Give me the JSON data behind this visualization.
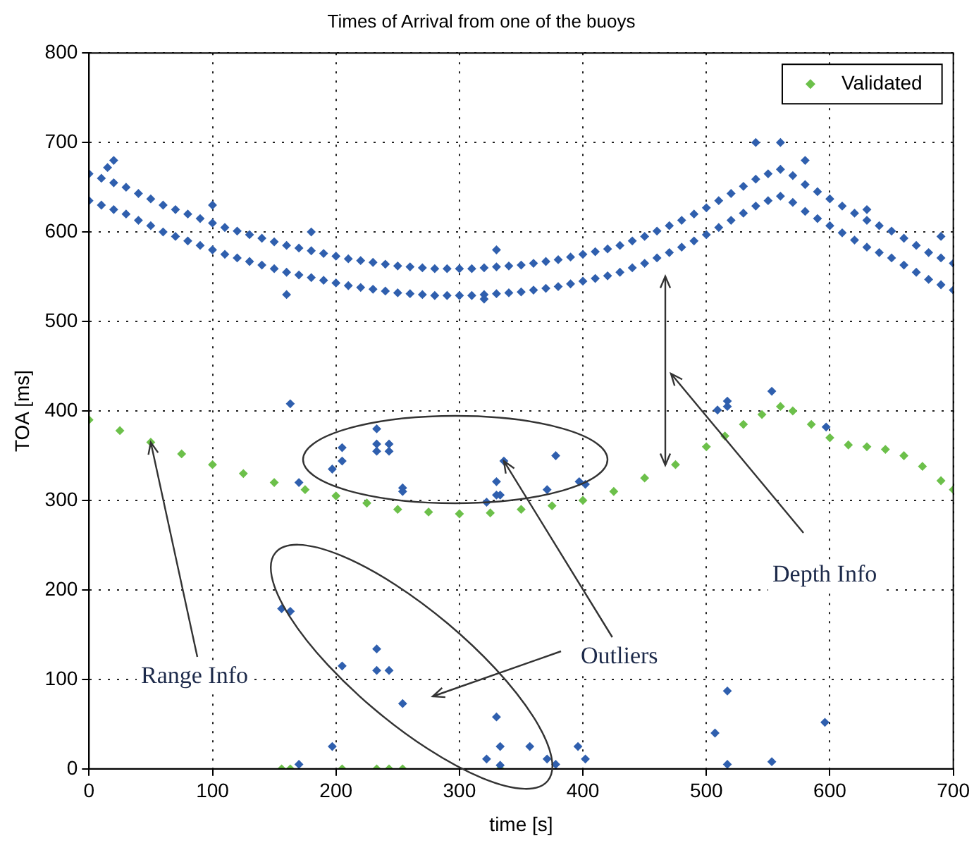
{
  "chart_data": {
    "type": "scatter",
    "title": "Times of Arrival from one of the buoys",
    "xlabel": "time [s]",
    "ylabel": "TOA [ms]",
    "xlim": [
      0,
      700
    ],
    "xticks": [
      0,
      100,
      200,
      300,
      400,
      500,
      600,
      700
    ],
    "ylim": [
      0,
      800
    ],
    "yticks": [
      0,
      100,
      200,
      300,
      400,
      500,
      600,
      700,
      800
    ],
    "grid": true,
    "legend": "top right",
    "marker": "diamond",
    "annotations": [
      {
        "text": "Range Info",
        "x": 50,
        "y": 365
      },
      {
        "text": "Outliers",
        "x": 336,
        "y": 344
      },
      "Depth Info"
    ],
    "series": [
      {
        "color": "#2f5fae",
        "x": [
          0,
          0,
          10,
          10,
          20,
          20,
          30,
          30,
          40,
          40,
          50,
          50,
          60,
          60,
          70,
          70,
          80,
          80,
          90,
          90,
          100,
          100,
          110,
          110,
          120,
          120,
          130,
          130,
          140,
          140,
          150,
          150,
          160,
          160,
          170,
          170,
          180,
          180,
          190,
          190,
          200,
          200,
          210,
          210,
          220,
          220,
          230,
          230,
          240,
          240,
          250,
          250,
          260,
          260,
          270,
          270,
          280,
          280,
          290,
          290,
          300,
          300,
          310,
          310,
          320,
          320,
          330,
          330,
          340,
          340,
          350,
          350,
          360,
          360,
          370,
          370,
          380,
          380,
          390,
          390,
          400,
          400,
          410,
          410,
          420,
          420,
          430,
          430,
          440,
          440,
          450,
          450,
          460,
          460,
          470,
          470,
          480,
          480,
          490,
          490,
          500,
          500,
          510,
          510,
          520,
          520,
          530,
          530,
          540,
          540,
          550,
          550,
          560,
          560,
          570,
          570,
          580,
          580,
          590,
          590,
          600,
          600,
          610,
          610,
          620,
          620,
          630,
          630,
          640,
          640,
          650,
          650,
          660,
          660,
          670,
          670,
          680,
          680,
          690,
          690,
          700,
          700,
          20,
          15,
          100,
          160,
          180,
          330,
          320,
          540,
          560,
          580,
          630,
          690,
          163,
          233,
          233,
          243,
          233,
          243,
          205,
          205,
          197,
          170,
          254,
          254,
          336,
          378,
          330,
          330,
          333,
          322,
          371,
          397,
          402,
          156,
          163,
          233,
          205,
          233,
          243,
          254,
          330,
          197,
          333,
          357,
          396,
          170,
          322,
          371,
          378,
          402,
          333,
          509,
          517,
          517,
          553,
          597,
          517,
          507,
          517,
          553,
          596
        ],
        "values": [
          665,
          635,
          660,
          630,
          655,
          625,
          650,
          620,
          643,
          613,
          637,
          607,
          630,
          600,
          625,
          595,
          620,
          590,
          615,
          585,
          610,
          580,
          605,
          575,
          601,
          571,
          597,
          567,
          593,
          563,
          589,
          559,
          585,
          555,
          582,
          552,
          579,
          549,
          576,
          546,
          573,
          543,
          570,
          540,
          568,
          538,
          566,
          536,
          564,
          534,
          562,
          532,
          561,
          531,
          560,
          530,
          559,
          529,
          559,
          529,
          559,
          529,
          559,
          529,
          560,
          530,
          561,
          531,
          562,
          532,
          563,
          533,
          565,
          535,
          567,
          537,
          569,
          539,
          572,
          542,
          575,
          545,
          578,
          548,
          581,
          551,
          585,
          555,
          590,
          560,
          595,
          565,
          601,
          571,
          607,
          577,
          613,
          583,
          620,
          590,
          627,
          597,
          635,
          605,
          643,
          613,
          651,
          621,
          659,
          629,
          665,
          635,
          670,
          640,
          663,
          633,
          653,
          623,
          645,
          615,
          637,
          607,
          629,
          599,
          621,
          591,
          613,
          583,
          607,
          577,
          601,
          571,
          593,
          563,
          585,
          555,
          577,
          547,
          571,
          541,
          565,
          535,
          680,
          672,
          630,
          530,
          600,
          580,
          525,
          700,
          700,
          680,
          625,
          595,
          408,
          380,
          363,
          363,
          355,
          355,
          359,
          344,
          335,
          320,
          314,
          310,
          344,
          350,
          321,
          306,
          306,
          298,
          312,
          321,
          318,
          179,
          176,
          134,
          115,
          110,
          110,
          73,
          58,
          25,
          25,
          25,
          25,
          5,
          11,
          11,
          5,
          11,
          4,
          401,
          411,
          405,
          422,
          382,
          87,
          40,
          5,
          8,
          52
        ]
      },
      {
        "name": "Validated",
        "color": "#6cc04a",
        "x": [
          0,
          25,
          50,
          75,
          100,
          125,
          150,
          175,
          200,
          225,
          250,
          275,
          300,
          325,
          350,
          375,
          400,
          425,
          450,
          475,
          500,
          515,
          530,
          545,
          560,
          570,
          585,
          600,
          615,
          630,
          645,
          660,
          675,
          690,
          700,
          156,
          163,
          205,
          233,
          243,
          254,
          333
        ],
        "values": [
          390,
          378,
          365,
          352,
          340,
          330,
          320,
          312,
          305,
          297,
          290,
          287,
          285,
          286,
          290,
          294,
          300,
          310,
          325,
          340,
          360,
          372,
          385,
          396,
          405,
          400,
          385,
          370,
          362,
          360,
          357,
          350,
          338,
          322,
          312,
          0,
          0,
          0,
          0,
          0,
          0,
          0
        ]
      }
    ]
  }
}
